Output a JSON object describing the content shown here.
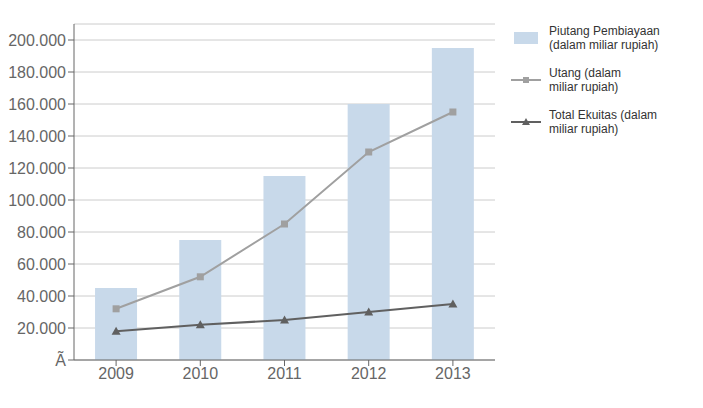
{
  "chart_data": {
    "type": "bar",
    "categories": [
      "2009",
      "2010",
      "2011",
      "2012",
      "2013"
    ],
    "series": [
      {
        "name": "Piutang Pembiayaan\n(dalam miliar rupiah)",
        "type": "bar",
        "color": "#c8d9ea",
        "values": [
          45000,
          75000,
          115000,
          160000,
          195000
        ]
      },
      {
        "name": "Utang (dalam\nmiliar rupiah)",
        "type": "line",
        "color": "#a0a0a0",
        "marker": "square",
        "values": [
          32000,
          52000,
          85000,
          130000,
          155000
        ]
      },
      {
        "name": "Total Ekuitas (dalam\nmiliar rupiah)",
        "type": "line",
        "color": "#606060",
        "marker": "triangle",
        "values": [
          18000,
          22000,
          25000,
          30000,
          35000
        ]
      }
    ],
    "ylim": [
      0,
      210000
    ],
    "yticks": [
      {
        "value": 0,
        "label": "Ã"
      },
      {
        "value": 20000,
        "label": "20.000"
      },
      {
        "value": 40000,
        "label": "40.000"
      },
      {
        "value": 60000,
        "label": "60.000"
      },
      {
        "value": 80000,
        "label": "80.000"
      },
      {
        "value": 100000,
        "label": "100.000"
      },
      {
        "value": 120000,
        "label": "120.000"
      },
      {
        "value": 140000,
        "label": "140.000"
      },
      {
        "value": 160000,
        "label": "160.000"
      },
      {
        "value": 180000,
        "label": "180.000"
      },
      {
        "value": 200000,
        "label": "200.000"
      }
    ],
    "grid": true,
    "legend": "right"
  }
}
